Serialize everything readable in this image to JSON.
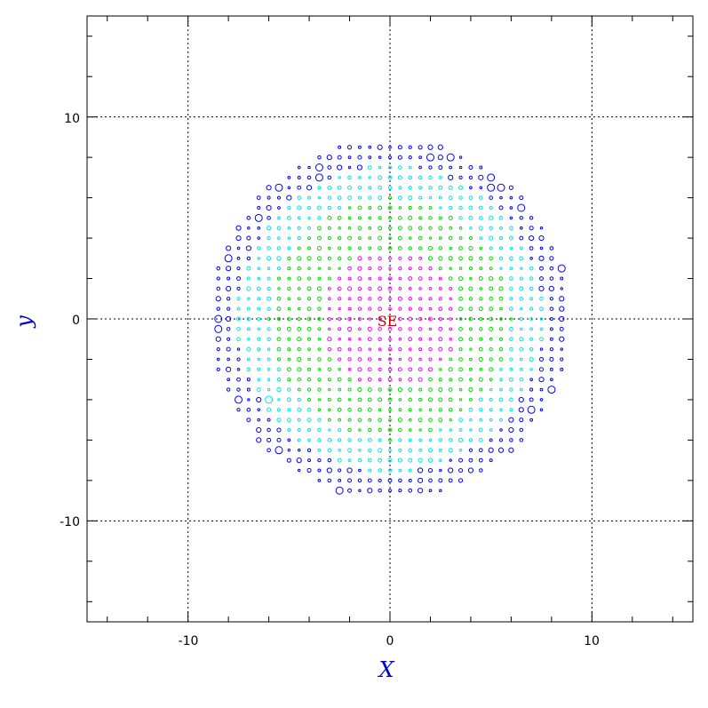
{
  "chart_data": {
    "type": "scatter",
    "title": "",
    "xlabel": "X",
    "ylabel": "y",
    "xlim": [
      -15,
      15
    ],
    "ylim": [
      -15,
      15
    ],
    "x_ticks": [
      -10,
      0,
      10
    ],
    "y_ticks": [
      10,
      0,
      -10
    ],
    "minor_tick_step": 2,
    "grid": true,
    "grid_style": "dotted",
    "disk_radius": 8.9,
    "grid_spacing": 0.5,
    "zones": [
      {
        "name": "inner",
        "r_max": 3.4,
        "color": "#ff00ff"
      },
      {
        "name": "middle",
        "r_max": 6.0,
        "color": "#00dd00"
      },
      {
        "name": "outer",
        "r_max": 7.6,
        "color": "#00e5e5"
      },
      {
        "name": "edge",
        "r_max": 8.9,
        "color": "#0000ff"
      }
    ],
    "large_markers": [
      [
        -3.5,
        7.5
      ],
      [
        -3.5,
        7.0
      ],
      [
        -5.5,
        6.5
      ],
      [
        -6.5,
        5.0
      ],
      [
        -8.0,
        3.0
      ],
      [
        -8.5,
        0.0
      ],
      [
        -8.5,
        -0.5
      ],
      [
        -7.5,
        -4.0
      ],
      [
        -6.0,
        -4.0
      ],
      [
        -5.5,
        -6.5
      ],
      [
        -5.0,
        -7.5
      ],
      [
        -2.5,
        -8.5
      ],
      [
        -0.5,
        -9.0
      ],
      [
        1.5,
        -9.0
      ],
      [
        4.0,
        -8.0
      ],
      [
        5.0,
        6.5
      ],
      [
        5.0,
        7.0
      ],
      [
        5.5,
        6.5
      ],
      [
        6.5,
        5.5
      ],
      [
        7.0,
        -4.5
      ],
      [
        8.5,
        2.5
      ],
      [
        8.5,
        -3.0
      ],
      [
        8.0,
        -3.5
      ],
      [
        9.0,
        0.5
      ],
      [
        2.0,
        8.0
      ],
      [
        3.0,
        8.0
      ]
    ],
    "center_label": "SE",
    "center_label_color": "#cc0000",
    "axis_title_color": "#0000cc"
  }
}
